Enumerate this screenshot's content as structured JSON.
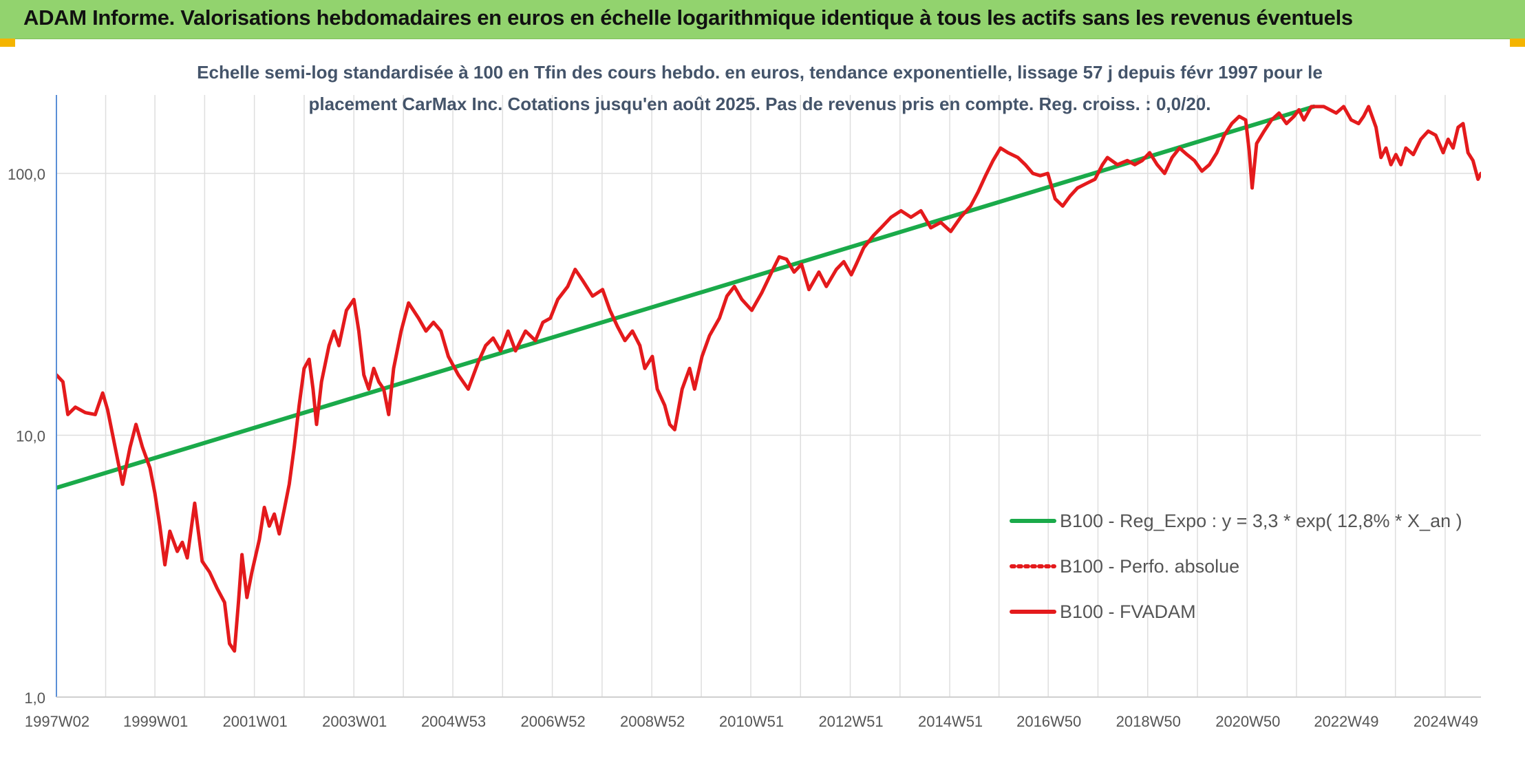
{
  "header": {
    "title": "ADAM Informe. Valorisations hebdomadaires en euros en échelle logarithmique identique à tous les actifs sans les revenus éventuels"
  },
  "chart_data": {
    "type": "line",
    "title_lines": [
      "Echelle semi-log standardisée à 100 en Tfin des cours hebdo. en euros, tendance exponentielle, lissage 57 j depuis févr 1997 pour le",
      "placement CarMax Inc. Cotations jusqu'en août 2025. Pas de revenus pris en compte. Reg. croiss. : 0,0/20."
    ],
    "y_scale": "log",
    "ylim": [
      1,
      180
    ],
    "xlim": [
      1997.02,
      2025.66
    ],
    "y_ticks": [
      {
        "value": 1,
        "label": "1,0"
      },
      {
        "value": 10,
        "label": "10,0"
      },
      {
        "value": 100,
        "label": "100,0"
      }
    ],
    "x_ticks": [
      {
        "value": 1997.02,
        "label": "1997W02"
      },
      {
        "value": 1999.0,
        "label": "1999W01"
      },
      {
        "value": 2001.0,
        "label": "2001W01"
      },
      {
        "value": 2003.0,
        "label": "2003W01"
      },
      {
        "value": 2004.99,
        "label": "2004W53"
      },
      {
        "value": 2006.99,
        "label": "2006W52"
      },
      {
        "value": 2008.99,
        "label": "2008W52"
      },
      {
        "value": 2010.98,
        "label": "2010W51"
      },
      {
        "value": 2012.98,
        "label": "2012W51"
      },
      {
        "value": 2014.98,
        "label": "2014W51"
      },
      {
        "value": 2016.96,
        "label": "2016W50"
      },
      {
        "value": 2018.96,
        "label": "2018W50"
      },
      {
        "value": 2020.96,
        "label": "2020W50"
      },
      {
        "value": 2022.94,
        "label": "2022W49"
      },
      {
        "value": 2024.94,
        "label": "2024W49"
      }
    ],
    "grid": "vertical and horizontal",
    "legend_position": "bottom-right",
    "series": [
      {
        "name": "B100 - Reg_Expo : y = 3,3 * exp( 12,8% *  X_an )",
        "color": "#1aaa4a",
        "style": "solid",
        "points": [
          [
            1997.02,
            6.3
          ],
          [
            2022.3,
            180
          ]
        ]
      },
      {
        "name": "B100 - Perfo. absolue",
        "color": "#e41a1c",
        "style": "dotted",
        "points": []
      },
      {
        "name": "B100 - FVADAM",
        "color": "#e41a1c",
        "style": "solid",
        "points": [
          [
            1997.02,
            17.0
          ],
          [
            1997.15,
            16.0
          ],
          [
            1997.25,
            12.0
          ],
          [
            1997.4,
            12.8
          ],
          [
            1997.6,
            12.2
          ],
          [
            1997.8,
            12.0
          ],
          [
            1997.95,
            14.5
          ],
          [
            1998.05,
            12.5
          ],
          [
            1998.2,
            9.0
          ],
          [
            1998.35,
            6.5
          ],
          [
            1998.5,
            9.0
          ],
          [
            1998.62,
            11.0
          ],
          [
            1998.75,
            9.0
          ],
          [
            1998.9,
            7.5
          ],
          [
            1999.0,
            6.0
          ],
          [
            1999.1,
            4.5
          ],
          [
            1999.2,
            3.2
          ],
          [
            1999.3,
            4.3
          ],
          [
            1999.45,
            3.6
          ],
          [
            1999.55,
            3.9
          ],
          [
            1999.65,
            3.4
          ],
          [
            1999.8,
            5.5
          ],
          [
            1999.95,
            3.3
          ],
          [
            2000.1,
            3.0
          ],
          [
            2000.25,
            2.6
          ],
          [
            2000.4,
            2.3
          ],
          [
            2000.5,
            1.6
          ],
          [
            2000.6,
            1.5
          ],
          [
            2000.68,
            2.3
          ],
          [
            2000.75,
            3.5
          ],
          [
            2000.85,
            2.4
          ],
          [
            2000.95,
            3.0
          ],
          [
            2001.1,
            4.0
          ],
          [
            2001.2,
            5.3
          ],
          [
            2001.3,
            4.5
          ],
          [
            2001.4,
            5.0
          ],
          [
            2001.5,
            4.2
          ],
          [
            2001.6,
            5.2
          ],
          [
            2001.7,
            6.5
          ],
          [
            2001.8,
            9.0
          ],
          [
            2001.9,
            13.0
          ],
          [
            2002.0,
            18.0
          ],
          [
            2002.1,
            19.5
          ],
          [
            2002.18,
            15.0
          ],
          [
            2002.25,
            11.0
          ],
          [
            2002.35,
            16.0
          ],
          [
            2002.5,
            22.0
          ],
          [
            2002.6,
            25.0
          ],
          [
            2002.7,
            22.0
          ],
          [
            2002.85,
            30.0
          ],
          [
            2003.0,
            33.0
          ],
          [
            2003.1,
            25.0
          ],
          [
            2003.2,
            17.0
          ],
          [
            2003.3,
            15.0
          ],
          [
            2003.4,
            18.0
          ],
          [
            2003.5,
            16.0
          ],
          [
            2003.6,
            15.0
          ],
          [
            2003.7,
            12.0
          ],
          [
            2003.8,
            18.0
          ],
          [
            2003.95,
            25.0
          ],
          [
            2004.1,
            32.0
          ],
          [
            2004.3,
            28.0
          ],
          [
            2004.45,
            25.0
          ],
          [
            2004.6,
            27.0
          ],
          [
            2004.75,
            25.0
          ],
          [
            2004.9,
            20.0
          ],
          [
            2005.1,
            17.0
          ],
          [
            2005.3,
            15.0
          ],
          [
            2005.5,
            19.0
          ],
          [
            2005.65,
            22.0
          ],
          [
            2005.8,
            23.5
          ],
          [
            2005.95,
            21.0
          ],
          [
            2006.1,
            25.0
          ],
          [
            2006.25,
            21.0
          ],
          [
            2006.45,
            25.0
          ],
          [
            2006.65,
            23.0
          ],
          [
            2006.8,
            27.0
          ],
          [
            2006.95,
            28.0
          ],
          [
            2007.1,
            33.0
          ],
          [
            2007.3,
            37.0
          ],
          [
            2007.45,
            43.0
          ],
          [
            2007.6,
            39.0
          ],
          [
            2007.8,
            34.0
          ],
          [
            2008.0,
            36.0
          ],
          [
            2008.15,
            30.0
          ],
          [
            2008.3,
            26.0
          ],
          [
            2008.45,
            23.0
          ],
          [
            2008.6,
            25.0
          ],
          [
            2008.75,
            22.0
          ],
          [
            2008.85,
            18.0
          ],
          [
            2009.0,
            20.0
          ],
          [
            2009.1,
            15.0
          ],
          [
            2009.25,
            13.0
          ],
          [
            2009.35,
            11.0
          ],
          [
            2009.45,
            10.5
          ],
          [
            2009.6,
            15.0
          ],
          [
            2009.75,
            18.0
          ],
          [
            2009.85,
            15.0
          ],
          [
            2010.0,
            20.0
          ],
          [
            2010.15,
            24.0
          ],
          [
            2010.35,
            28.0
          ],
          [
            2010.5,
            34.0
          ],
          [
            2010.65,
            37.0
          ],
          [
            2010.8,
            33.0
          ],
          [
            2011.0,
            30.0
          ],
          [
            2011.2,
            35.0
          ],
          [
            2011.4,
            42.0
          ],
          [
            2011.55,
            48.0
          ],
          [
            2011.7,
            47.0
          ],
          [
            2011.85,
            42.0
          ],
          [
            2012.0,
            45.0
          ],
          [
            2012.15,
            36.0
          ],
          [
            2012.35,
            42.0
          ],
          [
            2012.5,
            37.0
          ],
          [
            2012.7,
            43.0
          ],
          [
            2012.85,
            46.0
          ],
          [
            2013.0,
            41.0
          ],
          [
            2013.1,
            45.0
          ],
          [
            2013.25,
            52.0
          ],
          [
            2013.45,
            58.0
          ],
          [
            2013.6,
            62.0
          ],
          [
            2013.8,
            68.0
          ],
          [
            2014.0,
            72.0
          ],
          [
            2014.2,
            68.0
          ],
          [
            2014.4,
            72.0
          ],
          [
            2014.6,
            62.0
          ],
          [
            2014.8,
            65.0
          ],
          [
            2015.0,
            60.0
          ],
          [
            2015.2,
            68.0
          ],
          [
            2015.4,
            75.0
          ],
          [
            2015.55,
            85.0
          ],
          [
            2015.7,
            98.0
          ],
          [
            2015.85,
            112.0
          ],
          [
            2016.0,
            125.0
          ],
          [
            2016.15,
            120.0
          ],
          [
            2016.35,
            115.0
          ],
          [
            2016.5,
            108.0
          ],
          [
            2016.65,
            100.0
          ],
          [
            2016.8,
            98.0
          ],
          [
            2016.95,
            100.0
          ],
          [
            2017.1,
            80.0
          ],
          [
            2017.25,
            75.0
          ],
          [
            2017.4,
            82.0
          ],
          [
            2017.55,
            88.0
          ],
          [
            2017.75,
            92.0
          ],
          [
            2017.9,
            95.0
          ],
          [
            2018.05,
            108.0
          ],
          [
            2018.15,
            115.0
          ],
          [
            2018.35,
            108.0
          ],
          [
            2018.55,
            112.0
          ],
          [
            2018.7,
            108.0
          ],
          [
            2018.85,
            112.0
          ],
          [
            2019.0,
            120.0
          ],
          [
            2019.15,
            108.0
          ],
          [
            2019.3,
            100.0
          ],
          [
            2019.45,
            115.0
          ],
          [
            2019.6,
            125.0
          ],
          [
            2019.75,
            118.0
          ],
          [
            2019.9,
            112.0
          ],
          [
            2020.05,
            102.0
          ],
          [
            2020.2,
            108.0
          ],
          [
            2020.35,
            120.0
          ],
          [
            2020.5,
            140.0
          ],
          [
            2020.65,
            155.0
          ],
          [
            2020.8,
            165.0
          ],
          [
            2020.93,
            160.0
          ],
          [
            2021.0,
            122.0
          ],
          [
            2021.06,
            88.0
          ],
          [
            2021.15,
            130.0
          ],
          [
            2021.3,
            145.0
          ],
          [
            2021.45,
            160.0
          ],
          [
            2021.6,
            170.0
          ],
          [
            2021.75,
            155.0
          ],
          [
            2021.9,
            165.0
          ],
          [
            2022.0,
            175.0
          ],
          [
            2022.1,
            160.0
          ],
          [
            2022.25,
            180.0
          ],
          [
            2022.5,
            180.0
          ],
          [
            2022.75,
            170.0
          ],
          [
            2022.9,
            180.0
          ],
          [
            2023.05,
            160.0
          ],
          [
            2023.2,
            155.0
          ],
          [
            2023.3,
            165.0
          ],
          [
            2023.4,
            180.0
          ],
          [
            2023.55,
            150.0
          ],
          [
            2023.65,
            115.0
          ],
          [
            2023.75,
            125.0
          ],
          [
            2023.85,
            108.0
          ],
          [
            2023.95,
            118.0
          ],
          [
            2024.05,
            108.0
          ],
          [
            2024.15,
            125.0
          ],
          [
            2024.3,
            118.0
          ],
          [
            2024.45,
            135.0
          ],
          [
            2024.6,
            145.0
          ],
          [
            2024.75,
            140.0
          ],
          [
            2024.9,
            120.0
          ],
          [
            2025.0,
            135.0
          ],
          [
            2025.1,
            125.0
          ],
          [
            2025.2,
            150.0
          ],
          [
            2025.3,
            155.0
          ],
          [
            2025.4,
            120.0
          ],
          [
            2025.5,
            112.0
          ],
          [
            2025.6,
            95.0
          ],
          [
            2025.66,
            100.0
          ]
        ]
      }
    ]
  }
}
